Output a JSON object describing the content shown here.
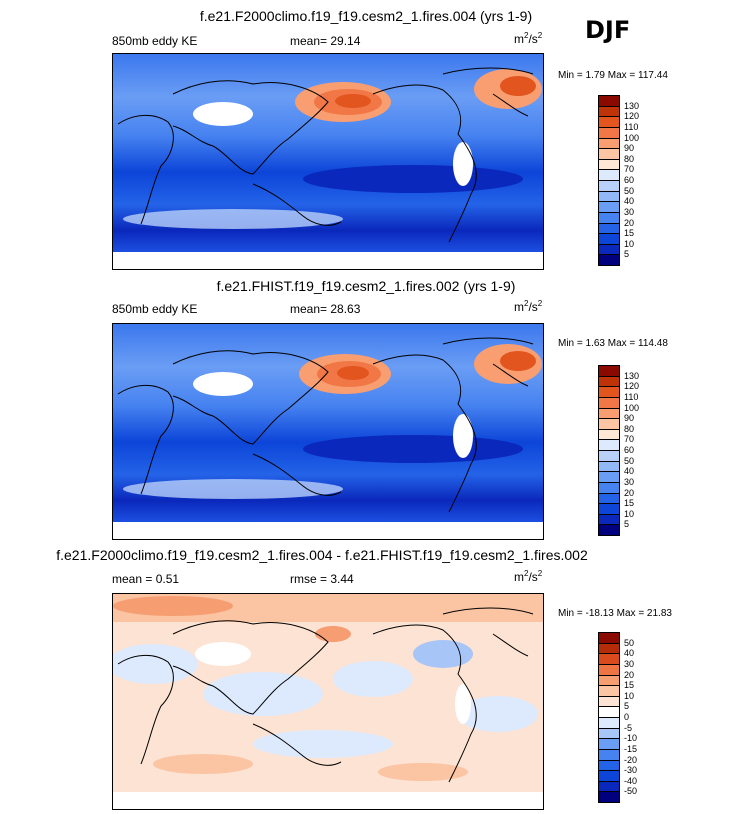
{
  "season": "DJF",
  "panels": [
    {
      "id": "p1",
      "title": "f.e21.F2000climo.f19_f19.cesm2_1.fires.004 (yrs 1-9)",
      "left_label": "850mb eddy KE",
      "center_label": "mean=  29.14",
      "units_base": "m",
      "units_exp1": "2",
      "units_mid": "/s",
      "units_exp2": "2",
      "minmax": "Min =   1.79 Max = 117.44"
    },
    {
      "id": "p2",
      "title": "f.e21.FHIST.f19_f19.cesm2_1.fires.002 (yrs 1-9)",
      "left_label": "850mb eddy KE",
      "center_label": "mean=  28.63",
      "units_base": "m",
      "units_exp1": "2",
      "units_mid": "/s",
      "units_exp2": "2",
      "minmax": "Min =   1.63 Max = 114.48"
    },
    {
      "id": "p3",
      "title": "f.e21.F2000climo.f19_f19.cesm2_1.fires.004 - f.e21.FHIST.f19_f19.cesm2_1.fires.002",
      "left_label": "mean =   0.51",
      "center_label": "rmse =   3.44",
      "units_base": "m",
      "units_exp1": "2",
      "units_mid": "/s",
      "units_exp2": "2",
      "minmax": "Min = -18.13 Max =  21.83"
    }
  ],
  "chart_data": [
    {
      "type": "heatmap",
      "title": "f.e21.F2000climo.f19_f19.cesm2_1.fires.004 (yrs 1-9)",
      "variable": "850mb eddy KE",
      "units": "m2/s2",
      "mean": 29.14,
      "min": 1.79,
      "max": 117.44,
      "colorbar_levels": [
        5,
        10,
        15,
        20,
        30,
        40,
        50,
        60,
        70,
        80,
        90,
        100,
        110,
        120,
        130
      ],
      "colorbar_colors": [
        "#00007f",
        "#0a28bb",
        "#0c45d8",
        "#2463e8",
        "#4682f0",
        "#6a9df4",
        "#92b8f7",
        "#b9d1fa",
        "#dde9fd",
        "#ffe7d6",
        "#fdc5a4",
        "#f89e71",
        "#f17846",
        "#e2551f",
        "#bf3309",
        "#8b0a00"
      ]
    },
    {
      "type": "heatmap",
      "title": "f.e21.FHIST.f19_f19.cesm2_1.fires.002 (yrs 1-9)",
      "variable": "850mb eddy KE",
      "units": "m2/s2",
      "mean": 28.63,
      "min": 1.63,
      "max": 114.48,
      "colorbar_levels": [
        5,
        10,
        15,
        20,
        30,
        40,
        50,
        60,
        70,
        80,
        90,
        100,
        110,
        120,
        130
      ],
      "colorbar_colors": [
        "#00007f",
        "#0a28bb",
        "#0c45d8",
        "#2463e8",
        "#4682f0",
        "#6a9df4",
        "#92b8f7",
        "#b9d1fa",
        "#dde9fd",
        "#ffe7d6",
        "#fdc5a4",
        "#f89e71",
        "#f17846",
        "#e2551f",
        "#bf3309",
        "#8b0a00"
      ]
    },
    {
      "type": "heatmap",
      "title": "f.e21.F2000climo.f19_f19.cesm2_1.fires.004 - f.e21.FHIST.f19_f19.cesm2_1.fires.002",
      "variable": "850mb eddy KE difference",
      "units": "m2/s2",
      "mean": 0.51,
      "rmse": 3.44,
      "min": -18.13,
      "max": 21.83,
      "colorbar_levels": [
        -50,
        -40,
        -30,
        -20,
        -15,
        -10,
        -5,
        0,
        5,
        10,
        15,
        20,
        30,
        40,
        50
      ],
      "colorbar_colors": [
        "#00007f",
        "#0a28bb",
        "#0c45d8",
        "#2463e8",
        "#4682f0",
        "#6a9df4",
        "#a8c5f8",
        "#dde9fd",
        "#ffffff",
        "#fde3d3",
        "#fbc4a3",
        "#f69d72",
        "#ee7444",
        "#d94a1c",
        "#b52c08",
        "#8b0a00"
      ]
    }
  ],
  "icons": [
    "world-map"
  ]
}
